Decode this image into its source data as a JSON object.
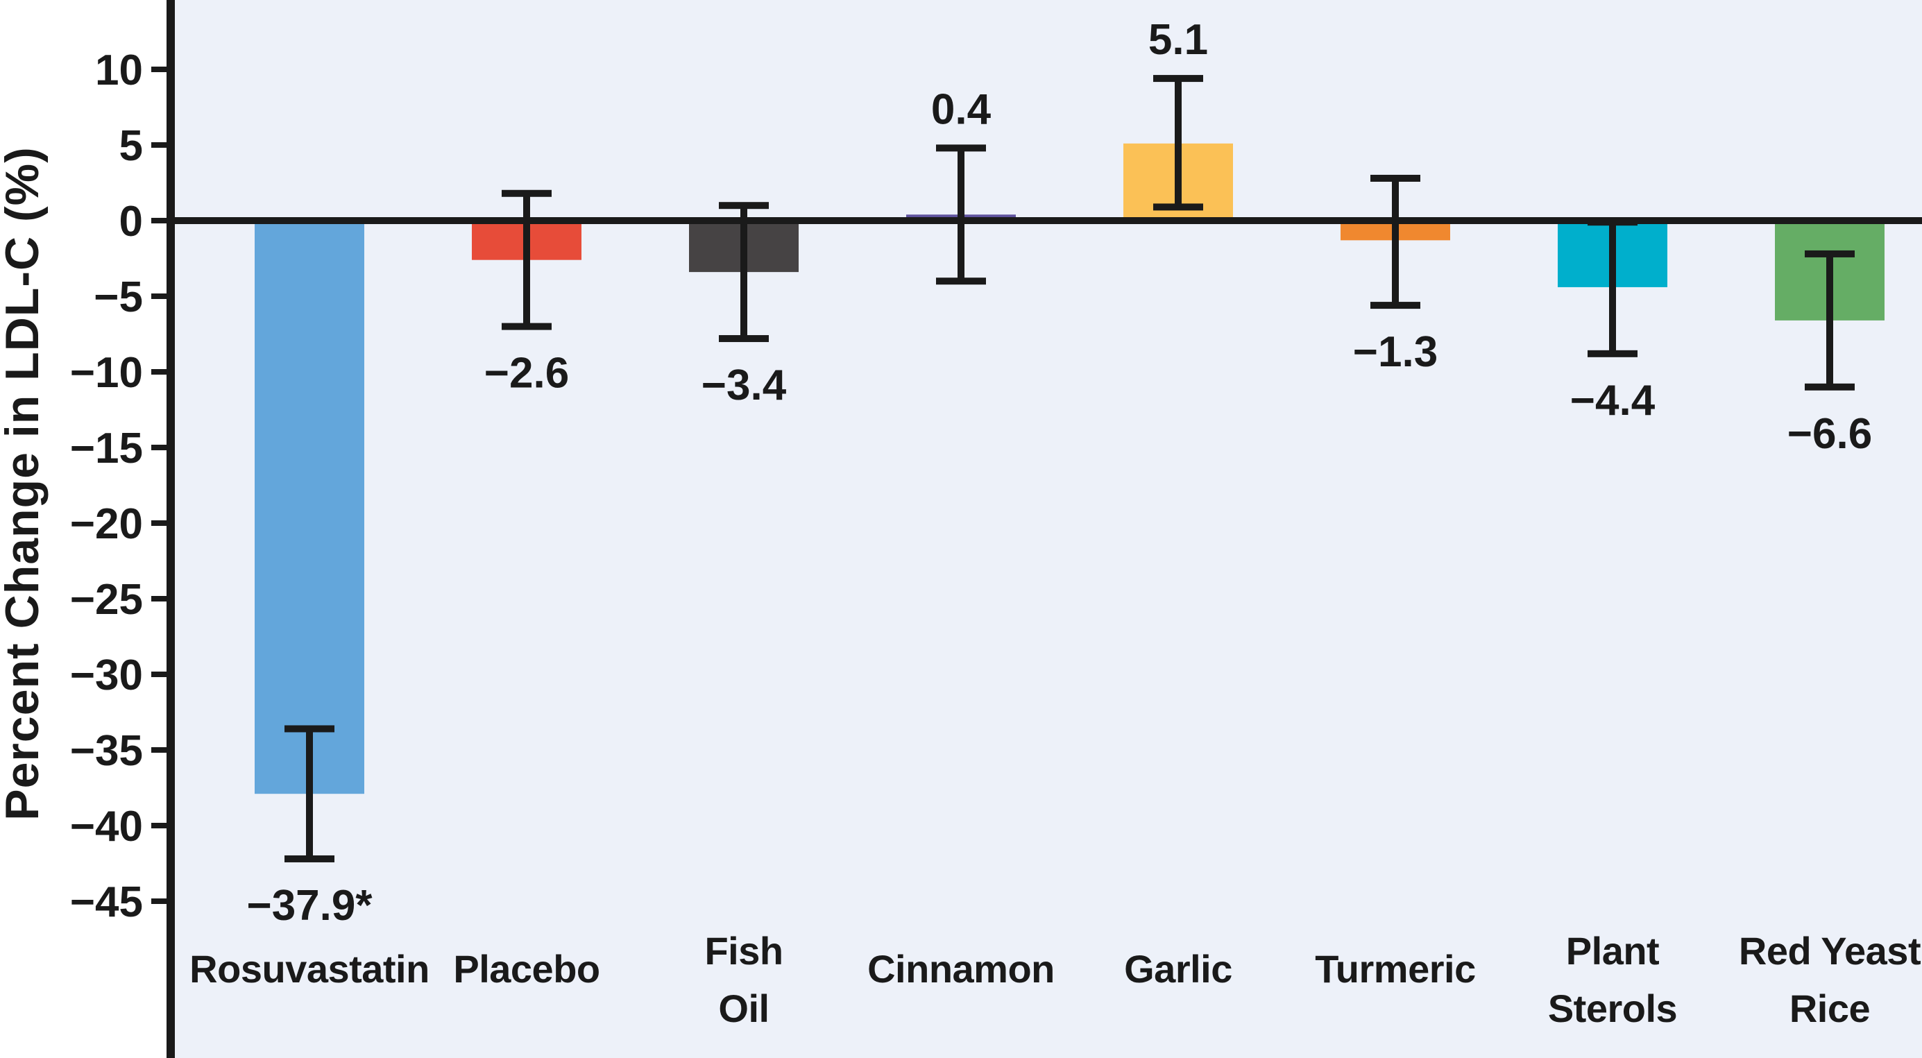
{
  "chart_data": {
    "type": "bar",
    "title": "",
    "xlabel": "",
    "ylabel": "Percent Change in LDL-C (%)",
    "ylim": [
      -45,
      10
    ],
    "grid": false,
    "legend": false,
    "background_color": "#edf1f9",
    "axis_color": "#1a1a1a",
    "yticks": [
      {
        "value": 10,
        "label": "10"
      },
      {
        "value": 5,
        "label": "5"
      },
      {
        "value": 0,
        "label": "0"
      },
      {
        "value": -5,
        "label": "−5"
      },
      {
        "value": -10,
        "label": "−10"
      },
      {
        "value": -15,
        "label": "−15"
      },
      {
        "value": -20,
        "label": "−20"
      },
      {
        "value": -25,
        "label": "−25"
      },
      {
        "value": -30,
        "label": "−30"
      },
      {
        "value": -35,
        "label": "−35"
      },
      {
        "value": -40,
        "label": "−40"
      },
      {
        "value": -45,
        "label": "−45"
      }
    ],
    "categories": [
      "Rosuvastatin",
      "Placebo",
      "Fish Oil",
      "Cinnamon",
      "Garlic",
      "Turmeric",
      "Plant Sterols",
      "Red Yeast Rice"
    ],
    "values": [
      -37.9,
      -2.6,
      -3.4,
      0.4,
      5.1,
      -1.3,
      -4.4,
      -6.6
    ],
    "bars": [
      {
        "category": "Rosuvastatin",
        "label_lines": [
          "Rosuvastatin"
        ],
        "value": -37.9,
        "value_label": "−37.9*",
        "error_high": -33.6,
        "error_low": -42.2,
        "color": "#63a6db"
      },
      {
        "category": "Placebo",
        "label_lines": [
          "Placebo"
        ],
        "value": -2.6,
        "value_label": "−2.6",
        "error_high": 1.8,
        "error_low": -7.0,
        "color": "#e74c39"
      },
      {
        "category": "Fish Oil",
        "label_lines": [
          "Fish",
          "Oil"
        ],
        "value": -3.4,
        "value_label": "−3.4",
        "error_high": 1.0,
        "error_low": -7.8,
        "color": "#464344"
      },
      {
        "category": "Cinnamon",
        "label_lines": [
          "Cinnamon"
        ],
        "value": 0.4,
        "value_label": "0.4",
        "error_high": 4.8,
        "error_low": -4.0,
        "color": "#5f539e"
      },
      {
        "category": "Garlic",
        "label_lines": [
          "Garlic"
        ],
        "value": 5.1,
        "value_label": "5.1",
        "error_high": 9.4,
        "error_low": 0.9,
        "color": "#fbc156"
      },
      {
        "category": "Turmeric",
        "label_lines": [
          "Turmeric"
        ],
        "value": -1.3,
        "value_label": "−1.3",
        "error_high": 2.8,
        "error_low": -5.6,
        "color": "#f0882f"
      },
      {
        "category": "Plant Sterols",
        "label_lines": [
          "Plant",
          "Sterols"
        ],
        "value": -4.4,
        "value_label": "−4.4",
        "error_high": -0.1,
        "error_low": -8.8,
        "color": "#00afcc"
      },
      {
        "category": "Red Yeast Rice",
        "label_lines": [
          "Red Yeast",
          "Rice"
        ],
        "value": -6.6,
        "value_label": "−6.6",
        "error_high": -2.2,
        "error_low": -11.0,
        "color": "#65ad65"
      }
    ]
  }
}
